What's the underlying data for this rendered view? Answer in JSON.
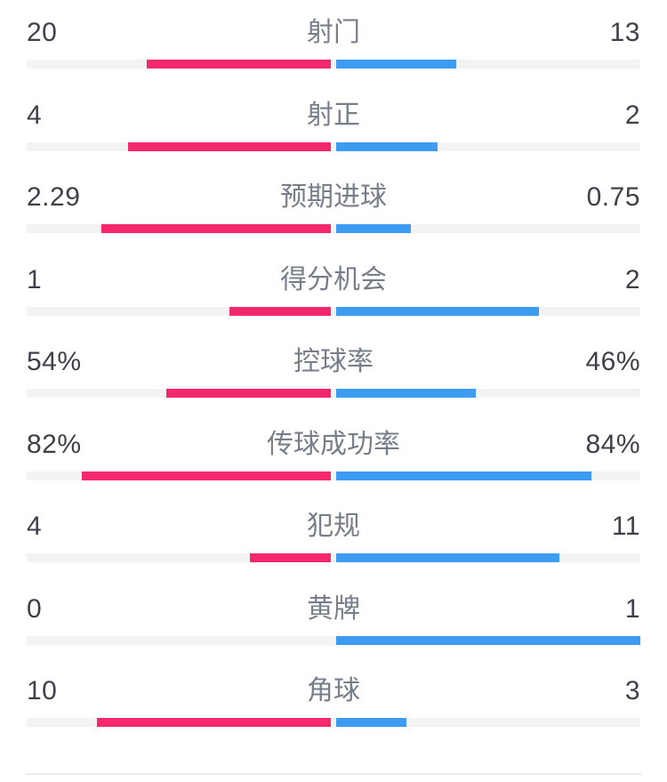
{
  "panel_title": "match-statistics",
  "colors": {
    "home_bar": "#f5286e",
    "away_bar": "#3e9bf2",
    "track": "#f3f3f3",
    "value_text": "#3e4149",
    "label_text": "#777e8a",
    "divider": "#ececec",
    "background": "#ffffff"
  },
  "chart_data": {
    "type": "bar",
    "subtype": "head-to-head-diverging-stats",
    "orientation": "horizontal",
    "center_labels": true,
    "legend": "none",
    "home_side": "left",
    "away_side": "right",
    "rows": [
      {
        "label": "射门",
        "home_display": "20",
        "away_display": "13",
        "home_value": 20,
        "away_value": 13,
        "kind": "count"
      },
      {
        "label": "射正",
        "home_display": "4",
        "away_display": "2",
        "home_value": 4,
        "away_value": 2,
        "kind": "count"
      },
      {
        "label": "预期进球",
        "home_display": "2.29",
        "away_display": "0.75",
        "home_value": 2.29,
        "away_value": 0.75,
        "kind": "count"
      },
      {
        "label": "得分机会",
        "home_display": "1",
        "away_display": "2",
        "home_value": 1,
        "away_value": 2,
        "kind": "count"
      },
      {
        "label": "控球率",
        "home_display": "54%",
        "away_display": "46%",
        "home_value": 54,
        "away_value": 46,
        "kind": "percent"
      },
      {
        "label": "传球成功率",
        "home_display": "82%",
        "away_display": "84%",
        "home_value": 82,
        "away_value": 84,
        "kind": "percent"
      },
      {
        "label": "犯规",
        "home_display": "4",
        "away_display": "11",
        "home_value": 4,
        "away_value": 11,
        "kind": "count"
      },
      {
        "label": "黄牌",
        "home_display": "0",
        "away_display": "1",
        "home_value": 0,
        "away_value": 1,
        "kind": "count"
      },
      {
        "label": "角球",
        "home_display": "10",
        "away_display": "3",
        "home_value": 10,
        "away_value": 3,
        "kind": "count"
      }
    ]
  }
}
